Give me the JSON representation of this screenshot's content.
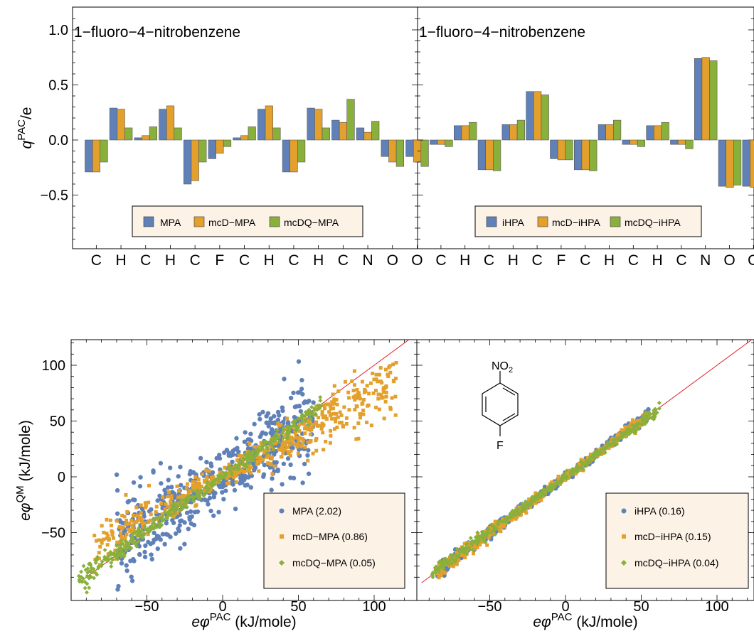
{
  "colors": {
    "blue": "#5f81b8",
    "orange": "#e3a02c",
    "green": "#8ab03c",
    "identity_line": "#e0202a",
    "legend_bg": "#fdf2e6"
  },
  "chart_data": [
    {
      "id": "charges-mpa",
      "type": "bar",
      "title": "1−fluoro−4−nitrobenzene",
      "ylabel_main": "q",
      "ylabel_sup": "PAC",
      "ylabel_tail": "/e",
      "ylim": [
        -0.95,
        1.2
      ],
      "yticks": [
        -0.5,
        0.0,
        0.5,
        1.0
      ],
      "ytick_labels": [
        "−0.5",
        "0.0",
        "0.5",
        "1.0"
      ],
      "categories": [
        "C",
        "H",
        "C",
        "H",
        "C",
        "F",
        "C",
        "H",
        "C",
        "H",
        "C",
        "N",
        "O",
        "O"
      ],
      "series": [
        {
          "name": "MPA",
          "color": "blue",
          "values": [
            -0.29,
            0.29,
            0.02,
            0.28,
            -0.4,
            -0.17,
            0.02,
            0.28,
            -0.29,
            0.29,
            0.18,
            0.11,
            -0.15,
            -0.15
          ]
        },
        {
          "name": "mcD−MPA",
          "color": "orange",
          "values": [
            -0.29,
            0.28,
            0.04,
            0.31,
            -0.37,
            -0.12,
            0.04,
            0.31,
            -0.29,
            0.28,
            0.16,
            0.07,
            -0.2,
            -0.2
          ]
        },
        {
          "name": "mcDQ−MPA",
          "color": "green",
          "values": [
            -0.2,
            0.11,
            0.12,
            0.11,
            -0.2,
            -0.06,
            0.12,
            0.11,
            -0.2,
            0.11,
            0.37,
            0.17,
            -0.24,
            -0.24
          ]
        }
      ],
      "legend": "bottom-center"
    },
    {
      "id": "charges-ihpa",
      "type": "bar",
      "title": "1−fluoro−4−nitrobenzene",
      "ylim": [
        -0.95,
        1.2
      ],
      "categories": [
        "C",
        "H",
        "C",
        "H",
        "C",
        "F",
        "C",
        "H",
        "C",
        "H",
        "C",
        "N",
        "O",
        "O"
      ],
      "series": [
        {
          "name": "iHPA",
          "color": "blue",
          "values": [
            -0.04,
            0.13,
            -0.27,
            0.14,
            0.44,
            -0.17,
            -0.27,
            0.14,
            -0.04,
            0.13,
            -0.04,
            0.74,
            -0.42,
            -0.42
          ]
        },
        {
          "name": "mcD−iHPA",
          "color": "orange",
          "values": [
            -0.04,
            0.13,
            -0.27,
            0.14,
            0.44,
            -0.18,
            -0.27,
            0.14,
            -0.04,
            0.13,
            -0.04,
            0.75,
            -0.43,
            -0.43
          ]
        },
        {
          "name": "mcDQ−iHPA",
          "color": "green",
          "values": [
            -0.06,
            0.16,
            -0.28,
            0.18,
            0.41,
            -0.18,
            -0.28,
            0.18,
            -0.06,
            0.16,
            -0.08,
            0.72,
            -0.41,
            -0.41
          ]
        }
      ],
      "legend": "bottom-center"
    },
    {
      "id": "potential-mpa",
      "type": "scatter",
      "xlabel_main": "eφ",
      "xlabel_sup": "PAC",
      "xlabel_tail": " (kJ/mole)",
      "ylabel_main": "eφ",
      "ylabel_sup": "QM",
      "ylabel_tail": " (kJ/mole)",
      "xlim": [
        -95,
        125
      ],
      "ylim": [
        -95,
        125
      ],
      "xticks": [
        -50,
        0,
        50,
        100
      ],
      "xtick_labels": [
        "−50",
        "0",
        "50",
        "100"
      ],
      "yticks": [
        -50,
        0,
        50,
        100
      ],
      "ytick_labels": [
        "−50",
        "0",
        "50",
        "100"
      ],
      "identity_line": true,
      "legend": "bottom-right",
      "series": [
        {
          "name": "MPA (2.02)",
          "color": "blue"
        },
        {
          "name": "mcD−MPA (0.86)",
          "color": "orange"
        },
        {
          "name": "mcDQ−MPA (0.05)",
          "color": "green"
        }
      ]
    },
    {
      "id": "potential-ihpa",
      "type": "scatter",
      "xlabel_main": "eφ",
      "xlabel_sup": "PAC",
      "xlabel_tail": " (kJ/mole)",
      "xlim": [
        -95,
        125
      ],
      "ylim": [
        -95,
        125
      ],
      "xticks": [
        -50,
        0,
        50,
        100
      ],
      "xtick_labels": [
        "−50",
        "0",
        "50",
        "100"
      ],
      "identity_line": true,
      "legend": "bottom-right",
      "molecule": {
        "top_label": "NO",
        "top_sub": "2",
        "bottom_label": "F"
      },
      "series": [
        {
          "name": "iHPA (0.16)",
          "color": "blue"
        },
        {
          "name": "mcD−iHPA (0.15)",
          "color": "orange"
        },
        {
          "name": "mcDQ−iHPA (0.04)",
          "color": "green"
        }
      ]
    }
  ]
}
